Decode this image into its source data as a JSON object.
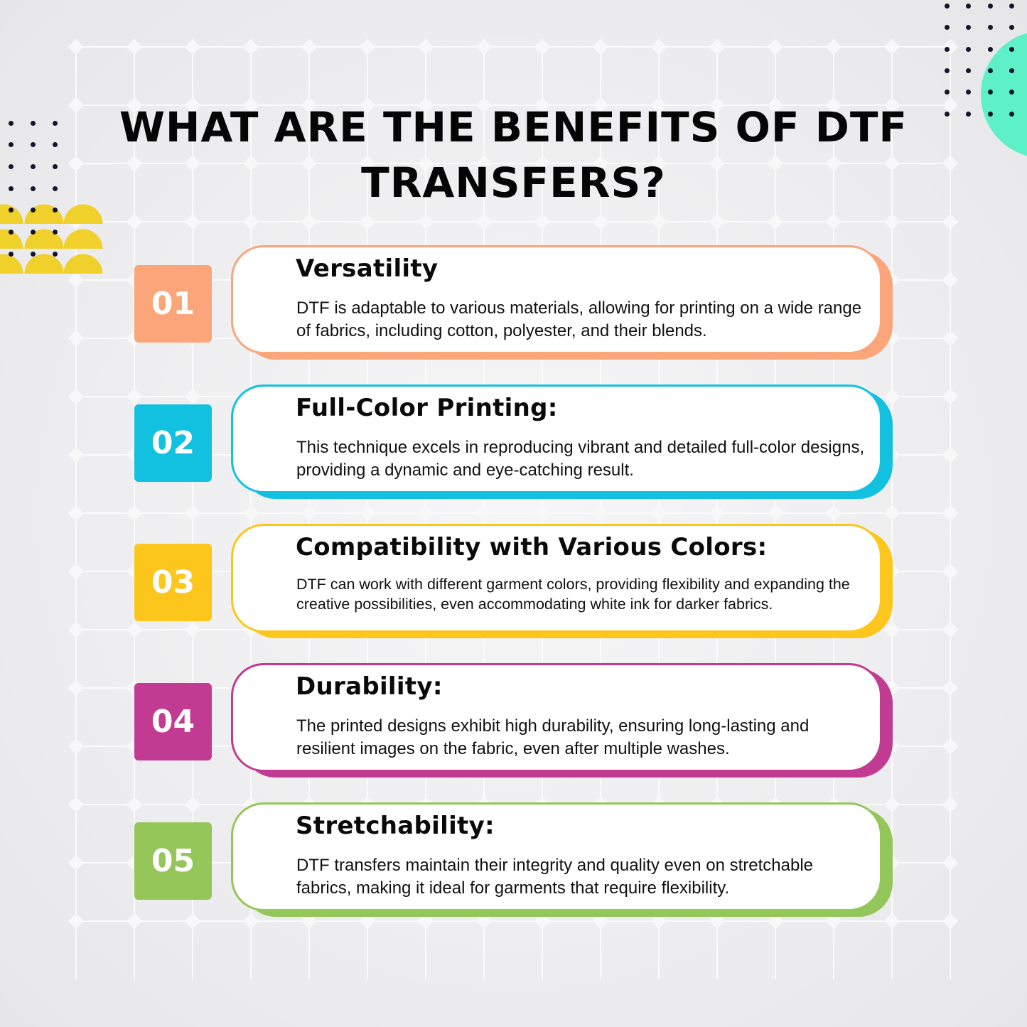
{
  "title": "WHAT ARE THE BENEFITS OF DTF TRANSFERS?",
  "colors": {
    "orange": "#fba67a",
    "cyan": "#12c1e0",
    "yellow": "#fcc61c",
    "magenta": "#c23b93",
    "green": "#95c65a",
    "accent_yellow": "#f0d12c",
    "accent_mint": "#5ef0c6"
  },
  "items": [
    {
      "number": "01",
      "heading": "Versatility",
      "text": "DTF is adaptable to various materials, allowing for printing on a wide range of fabrics, including cotton, polyester, and their blends.",
      "color": "#fba67a"
    },
    {
      "number": "02",
      "heading": "Full-Color Printing:",
      "text": "This technique excels in reproducing vibrant and detailed full-color designs, providing a dynamic and eye-catching result.",
      "color": "#12c1e0"
    },
    {
      "number": "03",
      "heading": "Compatibility with Various Colors:",
      "text": "DTF can work with different garment colors, providing flexibility and expanding the creative possibilities, even accommodating white ink for darker fabrics.",
      "color": "#fcc61c"
    },
    {
      "number": "04",
      "heading": "Durability:",
      "text": "The printed designs exhibit high durability, ensuring long-lasting and resilient images on the fabric, even after multiple washes.",
      "color": "#c23b93"
    },
    {
      "number": "05",
      "heading": "Stretchability:",
      "text": "DTF transfers maintain their integrity and quality even on stretchable fabrics, making it ideal for garments that require flexibility.",
      "color": "#95c65a"
    }
  ]
}
